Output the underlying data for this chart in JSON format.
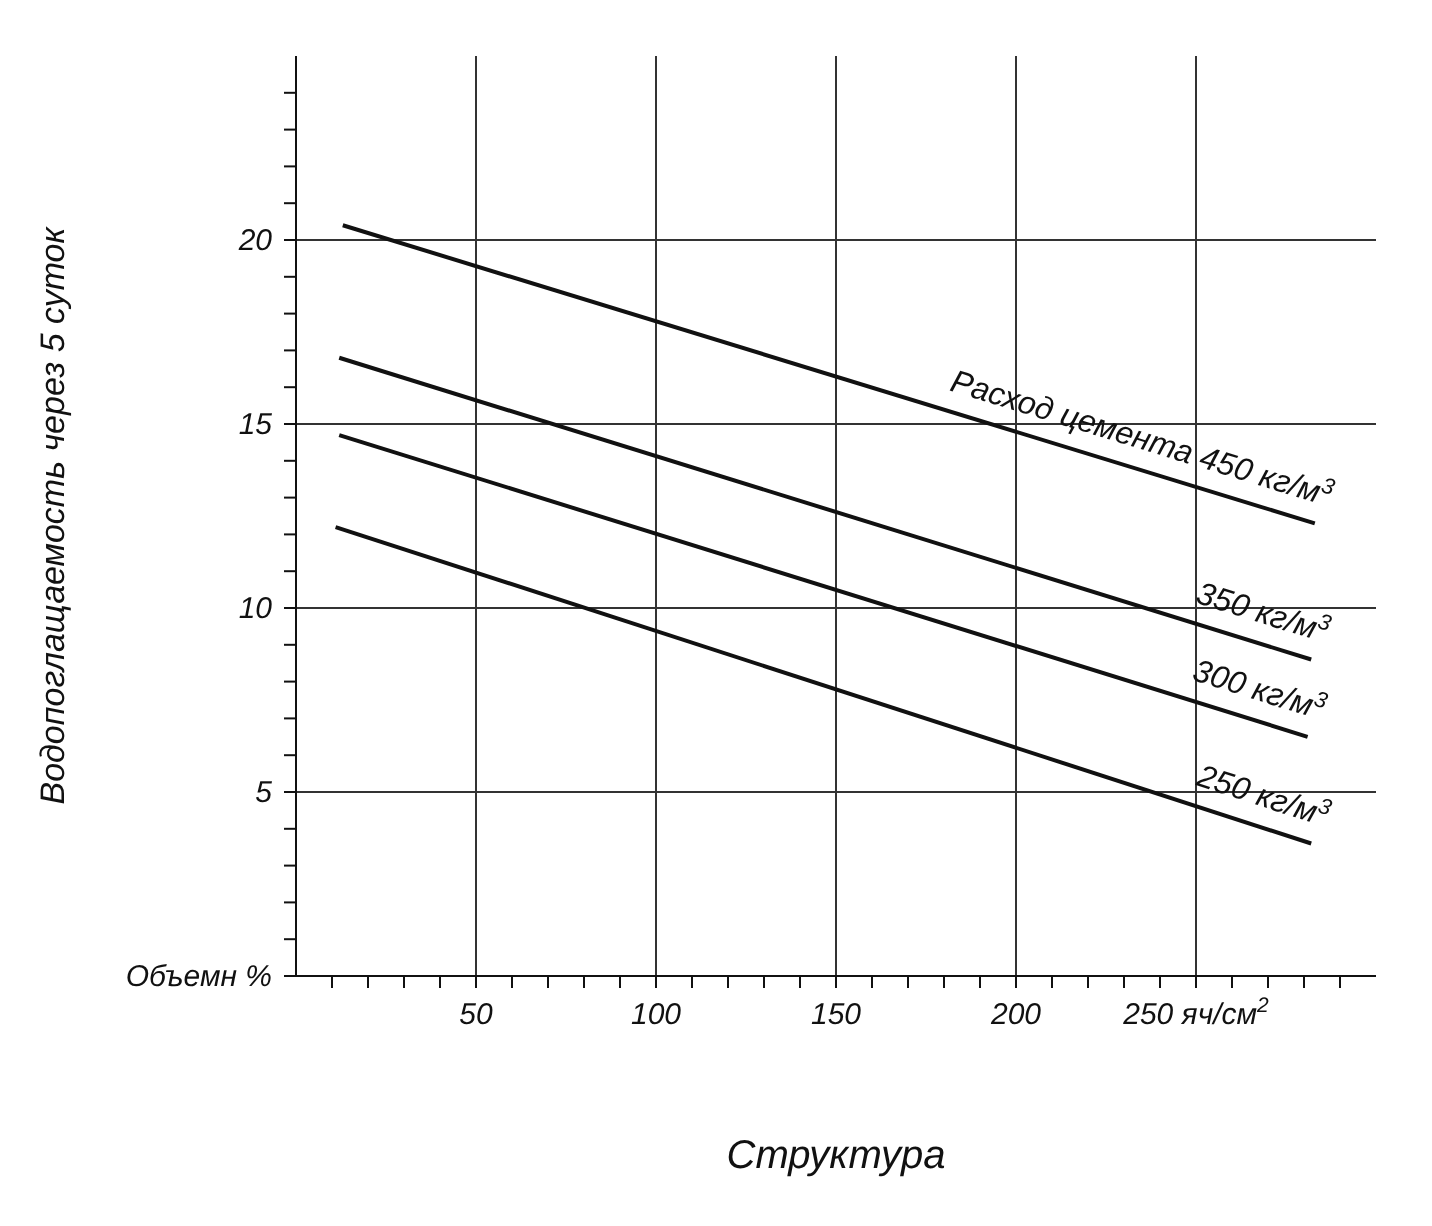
{
  "chart_data": {
    "type": "line",
    "xlabel": "Структура",
    "ylabel": "Водопоглащаемость через 5 суток",
    "xlim": [
      0,
      300
    ],
    "ylim": [
      0,
      25
    ],
    "xticks": [
      {
        "value": 10,
        "label": null
      },
      {
        "value": 20,
        "label": null
      },
      {
        "value": 30,
        "label": null
      },
      {
        "value": 40,
        "label": null
      },
      50,
      {
        "value": 60,
        "label": null
      },
      {
        "value": 70,
        "label": null
      },
      {
        "value": 80,
        "label": null
      },
      {
        "value": 90,
        "label": null
      },
      100,
      {
        "value": 110,
        "label": null
      },
      {
        "value": 120,
        "label": null
      },
      {
        "value": 130,
        "label": null
      },
      {
        "value": 140,
        "label": null
      },
      150,
      {
        "value": 160,
        "label": null
      },
      {
        "value": 170,
        "label": null
      },
      {
        "value": 180,
        "label": null
      },
      {
        "value": 190,
        "label": null
      },
      200,
      {
        "value": 210,
        "label": null
      },
      {
        "value": 220,
        "label": null
      },
      {
        "value": 230,
        "label": null
      },
      {
        "value": 240,
        "label": null
      },
      {
        "value": 250,
        "label": "250 яч/см$^{2}$"
      },
      {
        "value": 260,
        "label": null
      },
      {
        "value": 270,
        "label": null
      },
      {
        "value": 280,
        "label": null
      },
      {
        "value": 290,
        "label": null
      }
    ],
    "yticks": [
      {
        "value": 0,
        "label": "Объемн %"
      },
      {
        "value": 1,
        "label": null
      },
      {
        "value": 2,
        "label": null
      },
      {
        "value": 3,
        "label": null
      },
      {
        "value": 4,
        "label": null
      },
      5,
      {
        "value": 6,
        "label": null
      },
      {
        "value": 7,
        "label": null
      },
      {
        "value": 8,
        "label": null
      },
      {
        "value": 9,
        "label": null
      },
      10,
      {
        "value": 11,
        "label": null
      },
      {
        "value": 12,
        "label": null
      },
      {
        "value": 13,
        "label": null
      },
      {
        "value": 14,
        "label": null
      },
      15,
      {
        "value": 16,
        "label": null
      },
      {
        "value": 17,
        "label": null
      },
      {
        "value": 18,
        "label": null
      },
      {
        "value": 19,
        "label": null
      },
      20,
      {
        "value": 21,
        "label": null
      },
      {
        "value": 22,
        "label": null
      },
      {
        "value": 23,
        "label": null
      },
      {
        "value": 24,
        "label": null
      }
    ],
    "grid": true,
    "legend": false,
    "marker": "none",
    "line_style": "solid",
    "series": [
      {
        "name": "Расход цемента 450 кг/м$^{3}$",
        "color": "#111111",
        "x": [
          13,
          283
        ],
        "values": [
          20.4,
          12.3
        ]
      },
      {
        "name": "350 кг/м$^{3}$",
        "color": "#111111",
        "x": [
          12,
          282
        ],
        "values": [
          16.8,
          8.6
        ]
      },
      {
        "name": "300 кг/м$^{3}$",
        "color": "#111111",
        "x": [
          12,
          281
        ],
        "values": [
          14.7,
          6.5
        ]
      },
      {
        "name": "250 кг/м$^{3}$",
        "color": "#111111",
        "x": [
          11,
          282
        ],
        "values": [
          12.2,
          3.6
        ]
      }
    ]
  }
}
